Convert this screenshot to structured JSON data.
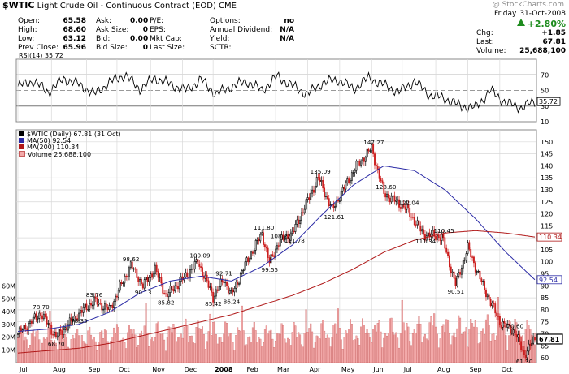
{
  "header": {
    "symbol": "$WTIC",
    "name": "Light Crude Oil - Continuous Contract (EOD)",
    "exchange": "CME",
    "watermark": "@ StockCharts.com",
    "date_day": "Friday",
    "date": "31-Oct-2008",
    "pct_change": "+2.80%"
  },
  "quote": {
    "col1": [
      {
        "label": "Open:",
        "value": "65.58"
      },
      {
        "label": "High:",
        "value": "68.60"
      },
      {
        "label": "Low:",
        "value": "63.12"
      },
      {
        "label": "Prev Close:",
        "value": "65.96"
      }
    ],
    "col2": [
      {
        "label": "Ask:",
        "value": "0.00"
      },
      {
        "label": "Ask Size:",
        "value": "0"
      },
      {
        "label": "Bid:",
        "value": "0.00"
      },
      {
        "label": "Bid Size:",
        "value": "0"
      }
    ],
    "col3": [
      {
        "label": "P/E:",
        "value": ""
      },
      {
        "label": "EPS:",
        "value": ""
      },
      {
        "label": "Mkt Cap:",
        "value": ""
      },
      {
        "label": "Last Size:",
        "value": ""
      }
    ],
    "col4": [
      {
        "label": "Options:",
        "value": "no"
      },
      {
        "label": "Annual Dividend:",
        "value": "N/A"
      },
      {
        "label": "Yield:",
        "value": "N/A"
      },
      {
        "label": "SCTR:",
        "value": ""
      }
    ],
    "right": [
      {
        "label": "Chg:",
        "value": "+1.85"
      },
      {
        "label": "Last:",
        "value": "67.81"
      },
      {
        "label": "Volume:",
        "value": "25,688,100"
      }
    ]
  },
  "colors": {
    "up": "#000000",
    "down": "#cc1f1f",
    "ma50": "#2b2ba6",
    "ma200": "#b01818",
    "volume": "#f2a9a9",
    "volume_edge": "#c65c5c",
    "grid": "#d8d8d8",
    "rsi_line": "#000000"
  },
  "chart_data": [
    {
      "type": "line",
      "panel": "rsi",
      "label": "RSI(14) 35.72",
      "ylim": [
        10,
        90
      ],
      "levels": [
        30,
        50,
        70
      ],
      "ticks": [
        10,
        30,
        50,
        70,
        90
      ],
      "last_value": 35.72,
      "last_label": "35.72",
      "x": [
        0,
        10,
        20,
        30,
        40,
        50,
        60,
        70,
        80,
        90,
        100,
        110,
        120,
        130,
        140,
        150,
        160,
        170,
        180,
        190,
        200,
        210,
        220,
        230,
        240,
        250,
        260,
        270,
        280,
        290,
        300,
        310,
        320,
        330,
        339
      ],
      "values": [
        55,
        62,
        48,
        65,
        58,
        45,
        60,
        70,
        52,
        66,
        58,
        50,
        64,
        45,
        55,
        62,
        50,
        68,
        56,
        45,
        60,
        64,
        52,
        66,
        57,
        48,
        62,
        44,
        40,
        30,
        28,
        50,
        34,
        28,
        35.72
      ]
    },
    {
      "type": "candlestick",
      "panel": "price",
      "title": "$WTIC (Daily) 67.81 (31 Oct)",
      "ylim": [
        58,
        155
      ],
      "y_ticks": [
        60,
        65,
        70,
        75,
        80,
        85,
        90,
        95,
        100,
        105,
        110,
        115,
        120,
        125,
        130,
        135,
        140,
        145,
        150
      ],
      "x_range": [
        0,
        339
      ],
      "x_labels": [
        {
          "x": 0,
          "label": "Jul"
        },
        {
          "x": 22,
          "label": "Aug"
        },
        {
          "x": 45,
          "label": "Sep"
        },
        {
          "x": 65,
          "label": "Oct"
        },
        {
          "x": 87,
          "label": "Nov"
        },
        {
          "x": 108,
          "label": "Dec"
        },
        {
          "x": 128,
          "label": "2008"
        },
        {
          "x": 149,
          "label": "Feb"
        },
        {
          "x": 169,
          "label": "Mar"
        },
        {
          "x": 190,
          "label": "Apr"
        },
        {
          "x": 211,
          "label": "May"
        },
        {
          "x": 232,
          "label": "Jun"
        },
        {
          "x": 252,
          "label": "Jul"
        },
        {
          "x": 274,
          "label": "Aug"
        },
        {
          "x": 295,
          "label": "Sep"
        },
        {
          "x": 316,
          "label": "Oct"
        }
      ],
      "anchors": [
        {
          "x": 0,
          "v": 70
        },
        {
          "x": 15,
          "v": 78.7
        },
        {
          "x": 25,
          "v": 68.7
        },
        {
          "x": 40,
          "v": 78.35
        },
        {
          "x": 50,
          "v": 83.76
        },
        {
          "x": 60,
          "v": 80
        },
        {
          "x": 74,
          "v": 98.62
        },
        {
          "x": 82,
          "v": 90.13
        },
        {
          "x": 90,
          "v": 97
        },
        {
          "x": 97,
          "v": 85.82
        },
        {
          "x": 110,
          "v": 94
        },
        {
          "x": 118,
          "v": 100.09
        },
        {
          "x": 128,
          "v": 85.42
        },
        {
          "x": 135,
          "v": 92.71
        },
        {
          "x": 140,
          "v": 86.24
        },
        {
          "x": 150,
          "v": 100
        },
        {
          "x": 160,
          "v": 111.8
        },
        {
          "x": 165,
          "v": 99.55
        },
        {
          "x": 171,
          "v": 108.22
        },
        {
          "x": 180,
          "v": 111.78
        },
        {
          "x": 197,
          "v": 135.09
        },
        {
          "x": 206,
          "v": 121.61
        },
        {
          "x": 222,
          "v": 140
        },
        {
          "x": 232,
          "v": 147.27
        },
        {
          "x": 240,
          "v": 128.6
        },
        {
          "x": 255,
          "v": 122.04
        },
        {
          "x": 266,
          "v": 111.34
        },
        {
          "x": 278,
          "v": 110.45
        },
        {
          "x": 287,
          "v": 90.51
        },
        {
          "x": 295,
          "v": 106
        },
        {
          "x": 305,
          "v": 90
        },
        {
          "x": 316,
          "v": 75
        },
        {
          "x": 326,
          "v": 70.6
        },
        {
          "x": 332,
          "v": 61.3
        },
        {
          "x": 339,
          "v": 67.81
        }
      ],
      "annotations": [
        {
          "x": 15,
          "v": 78.7,
          "label": "78.70",
          "pos": "above"
        },
        {
          "x": 25,
          "v": 68.7,
          "label": "68.70",
          "pos": "below"
        },
        {
          "x": 40,
          "v": 78.35,
          "label": "78.35",
          "pos": "below"
        },
        {
          "x": 50,
          "v": 83.76,
          "label": "83.76",
          "pos": "above"
        },
        {
          "x": 74,
          "v": 98.62,
          "label": "98.62",
          "pos": "above"
        },
        {
          "x": 82,
          "v": 90.13,
          "label": "90.13",
          "pos": "below"
        },
        {
          "x": 97,
          "v": 85.82,
          "label": "85.82",
          "pos": "below"
        },
        {
          "x": 118,
          "v": 100.09,
          "label": "100.09",
          "pos": "above"
        },
        {
          "x": 128,
          "v": 85.42,
          "label": "85.42",
          "pos": "below"
        },
        {
          "x": 135,
          "v": 92.71,
          "label": "92.71",
          "pos": "above"
        },
        {
          "x": 140,
          "v": 86.24,
          "label": "86.24",
          "pos": "below"
        },
        {
          "x": 160,
          "v": 111.8,
          "label": "111.80",
          "pos": "above"
        },
        {
          "x": 165,
          "v": 99.55,
          "label": "99.55",
          "pos": "below"
        },
        {
          "x": 171,
          "v": 108.22,
          "label": "108.22",
          "pos": "above"
        },
        {
          "x": 180,
          "v": 111.78,
          "label": "111.78",
          "pos": "below"
        },
        {
          "x": 197,
          "v": 135.09,
          "label": "135.09",
          "pos": "above"
        },
        {
          "x": 206,
          "v": 121.61,
          "label": "121.61",
          "pos": "below"
        },
        {
          "x": 232,
          "v": 147.27,
          "label": "147.27",
          "pos": "above"
        },
        {
          "x": 240,
          "v": 128.6,
          "label": "128.60",
          "pos": "above"
        },
        {
          "x": 255,
          "v": 122.04,
          "label": "122.04",
          "pos": "above"
        },
        {
          "x": 266,
          "v": 111.34,
          "label": "111.34",
          "pos": "below"
        },
        {
          "x": 278,
          "v": 110.45,
          "label": "110.45",
          "pos": "above"
        },
        {
          "x": 287,
          "v": 90.51,
          "label": "90.51",
          "pos": "below"
        },
        {
          "x": 326,
          "v": 70.6,
          "label": "70.60",
          "pos": "above"
        },
        {
          "x": 332,
          "v": 61.3,
          "label": "61.30",
          "pos": "below"
        }
      ],
      "series": [
        {
          "name": "MA(50) 92.54",
          "last_value": 92.54,
          "last_label": "92.54",
          "x": [
            0,
            20,
            40,
            60,
            80,
            100,
            120,
            140,
            160,
            180,
            200,
            220,
            240,
            260,
            280,
            300,
            320,
            339
          ],
          "values": [
            71,
            72,
            74,
            79,
            87,
            92,
            94,
            92,
            98,
            107,
            120,
            132,
            140,
            138,
            130,
            118,
            104,
            92.54
          ]
        },
        {
          "name": "MA(200) 110.34",
          "last_value": 110.34,
          "last_label": "110.34",
          "x": [
            0,
            20,
            40,
            60,
            80,
            100,
            120,
            140,
            160,
            180,
            200,
            220,
            240,
            260,
            280,
            300,
            320,
            339
          ],
          "values": [
            62,
            63,
            64,
            66,
            69,
            72,
            75,
            78,
            82,
            86,
            91,
            97,
            104,
            109,
            112,
            113,
            112,
            110.34
          ]
        }
      ],
      "last_value": 67.81,
      "last_label": "67.81"
    },
    {
      "type": "bar",
      "panel": "volume",
      "label": "Volume 25,688,100",
      "ylim": [
        0,
        70
      ],
      "ticks": [
        {
          "v": 10,
          "label": "10M"
        },
        {
          "v": 20,
          "label": "20M"
        },
        {
          "v": 30,
          "label": "30M"
        },
        {
          "v": 40,
          "label": "40M"
        },
        {
          "v": 50,
          "label": "50M"
        },
        {
          "v": 60,
          "label": "60M"
        }
      ],
      "x": [
        0,
        40,
        80,
        120,
        160,
        200,
        240,
        280,
        320,
        339
      ],
      "values": [
        24,
        22,
        26,
        28,
        25,
        27,
        29,
        30,
        31,
        25.7
      ]
    }
  ]
}
